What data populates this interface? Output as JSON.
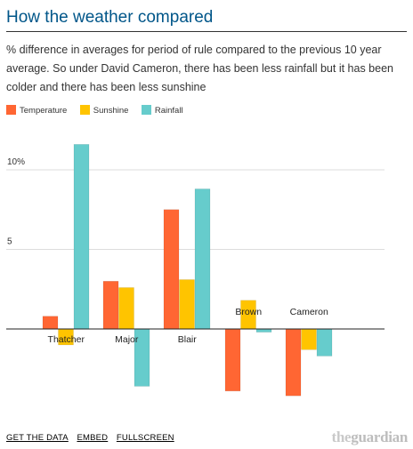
{
  "header": {
    "title": "How the weather compared",
    "standfirst": "% difference in averages for period of rule compared to the previous 10 year average. So under David Cameron, there has been less rainfall but it has been colder and there has been less sunshine"
  },
  "legend": [
    {
      "label": "Temperature",
      "color": "#ff6633"
    },
    {
      "label": "Sunshine",
      "color": "#ffc400"
    },
    {
      "label": "Rainfall",
      "color": "#66cccc"
    }
  ],
  "chart_data": {
    "type": "bar",
    "categories": [
      "Thatcher",
      "Major",
      "Blair",
      "Brown",
      "Cameron"
    ],
    "series": [
      {
        "name": "Temperature",
        "color": "#ff6633",
        "values": [
          0.8,
          3.0,
          7.5,
          -3.9,
          -4.2
        ]
      },
      {
        "name": "Sunshine",
        "color": "#ffc400",
        "values": [
          -1.0,
          2.6,
          3.1,
          1.8,
          -1.3
        ]
      },
      {
        "name": "Rainfall",
        "color": "#66cccc",
        "values": [
          11.6,
          -3.6,
          8.8,
          -0.2,
          -1.7
        ]
      }
    ],
    "yticks": [
      {
        "value": 10,
        "label": "10%"
      },
      {
        "value": 5,
        "label": "5"
      }
    ],
    "ylim": [
      -5.5,
      12.5
    ],
    "grid": true,
    "legend_position": "top-left"
  },
  "footer": {
    "links": [
      "GET THE DATA",
      "EMBED",
      "FULLSCREEN"
    ],
    "brand_prefix": "the",
    "brand_name": "guardian"
  }
}
